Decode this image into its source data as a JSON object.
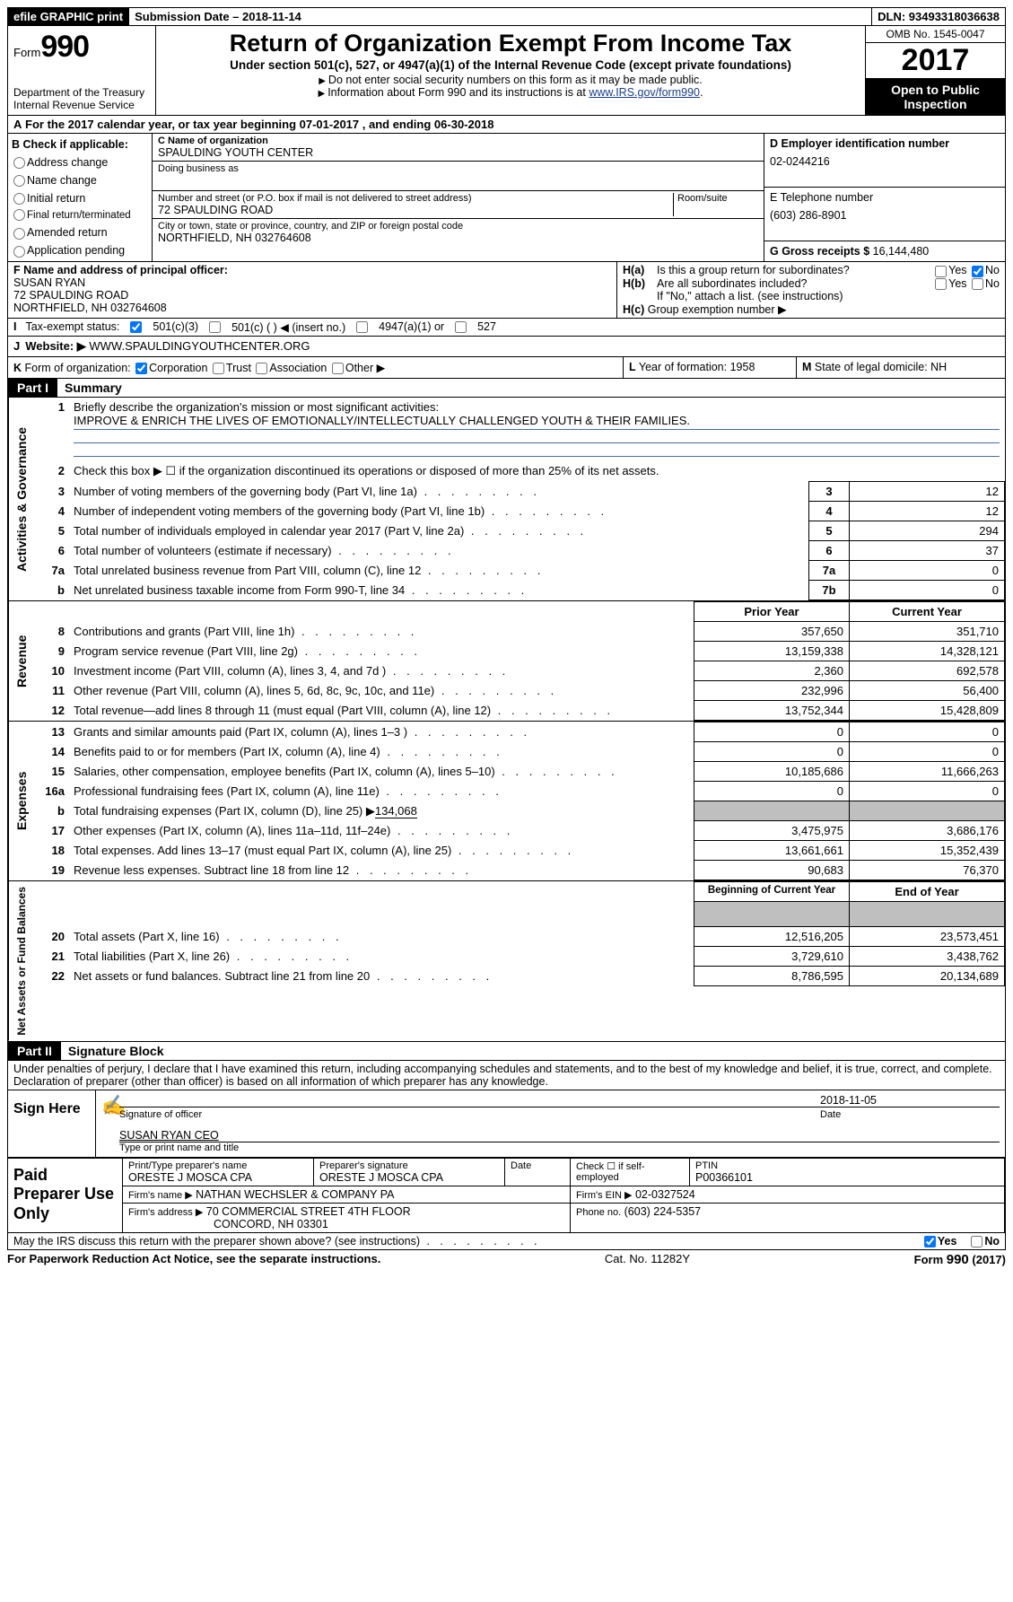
{
  "topbar": {
    "efile": "efile GRAPHIC print",
    "submission": "Submission Date – 2018-11-14",
    "dln": "DLN: 93493318036638"
  },
  "header": {
    "form_label": "Form",
    "form_num": "990",
    "dept1": "Department of the Treasury",
    "dept2": "Internal Revenue Service",
    "title": "Return of Organization Exempt From Income Tax",
    "subtitle": "Under section 501(c), 527, or 4947(a)(1) of the Internal Revenue Code (except private foundations)",
    "note1": "Do not enter social security numbers on this form as it may be made public.",
    "note2_pre": "Information about Form 990 and its instructions is at ",
    "note2_link": "www.IRS.gov/form990",
    "omb": "OMB No. 1545-0047",
    "year": "2017",
    "open": "Open to Public Inspection"
  },
  "row_a": {
    "label": "A",
    "text_pre": "For the 2017 calendar year, or tax year beginning ",
    "begin": "07-01-2017",
    "text_mid": " , and ending ",
    "end": "06-30-2018"
  },
  "col_b": {
    "title": "B Check if applicable:",
    "items": [
      "Address change",
      "Name change",
      "Initial return",
      "Final return/terminated",
      "Amended return",
      "Application pending"
    ]
  },
  "col_c": {
    "name_label": "C Name of organization",
    "name": "SPAULDING YOUTH CENTER",
    "dba_label": "Doing business as",
    "dba": "",
    "street_label": "Number and street (or P.O. box if mail is not delivered to street address)",
    "room_label": "Room/suite",
    "street": "72 SPAULDING ROAD",
    "city_label": "City or town, state or province, country, and ZIP or foreign postal code",
    "city": "NORTHFIELD, NH  032764608"
  },
  "col_d": {
    "ein_label": "D Employer identification number",
    "ein": "02-0244216",
    "phone_label": "E Telephone number",
    "phone": "(603) 286-8901",
    "gross_label": "G Gross receipts $",
    "gross": "16,144,480"
  },
  "f": {
    "label": "F  Name and address of principal officer:",
    "name": "SUSAN RYAN",
    "addr1": "72 SPAULDING ROAD",
    "addr2": "NORTHFIELD, NH  032764608"
  },
  "h": {
    "ha_label": "H(a)",
    "ha_text": "Is this a group return for subordinates?",
    "hb_label": "H(b)",
    "hb_text": "Are all subordinates included?",
    "hb_note": "If \"No,\" attach a list. (see instructions)",
    "hc_label": "H(c)",
    "hc_text": "Group exemption number ▶",
    "yes": "Yes",
    "no": "No"
  },
  "i": {
    "label": "I",
    "text": "Tax-exempt status:",
    "o1": "501(c)(3)",
    "o2": "501(c) (   ) ◀ (insert no.)",
    "o3": "4947(a)(1) or",
    "o4": "527"
  },
  "j": {
    "label": "J",
    "text": "Website: ▶",
    "value": "WWW.SPAULDINGYOUTHCENTER.ORG"
  },
  "k": {
    "label": "K",
    "text": "Form of organization:",
    "o1": "Corporation",
    "o2": "Trust",
    "o3": "Association",
    "o4": "Other ▶"
  },
  "l": {
    "label": "L",
    "text": "Year of formation:",
    "value": "1958"
  },
  "m": {
    "label": "M",
    "text": "State of legal domicile:",
    "value": "NH"
  },
  "part1": {
    "header": "Part I",
    "title": "Summary",
    "sidebar_gov": "Activities & Governance",
    "sidebar_rev": "Revenue",
    "sidebar_exp": "Expenses",
    "sidebar_net": "Net Assets or Fund Balances",
    "line1_label": "1",
    "line1_text": "Briefly describe the organization's mission or most significant activities:",
    "line1_value": "IMPROVE & ENRICH THE LIVES OF EMOTIONALLY/INTELLECTUALLY CHALLENGED YOUTH & THEIR FAMILIES.",
    "line2_label": "2",
    "line2_text": "Check this box ▶ ☐  if the organization discontinued its operations or disposed of more than 25% of its net assets.",
    "lines": [
      {
        "n": "3",
        "t": "Number of voting members of the governing body (Part VI, line 1a)",
        "box": "3",
        "v": "12"
      },
      {
        "n": "4",
        "t": "Number of independent voting members of the governing body (Part VI, line 1b)",
        "box": "4",
        "v": "12"
      },
      {
        "n": "5",
        "t": "Total number of individuals employed in calendar year 2017 (Part V, line 2a)",
        "box": "5",
        "v": "294"
      },
      {
        "n": "6",
        "t": "Total number of volunteers (estimate if necessary)",
        "box": "6",
        "v": "37"
      },
      {
        "n": "7a",
        "t": "Total unrelated business revenue from Part VIII, column (C), line 12",
        "box": "7a",
        "v": "0"
      },
      {
        "n": "b",
        "t": "Net unrelated business taxable income from Form 990-T, line 34",
        "box": "7b",
        "v": "0"
      }
    ],
    "col_prior": "Prior Year",
    "col_current": "Current Year",
    "revenue": [
      {
        "n": "8",
        "t": "Contributions and grants (Part VIII, line 1h)",
        "p": "357,650",
        "c": "351,710"
      },
      {
        "n": "9",
        "t": "Program service revenue (Part VIII, line 2g)",
        "p": "13,159,338",
        "c": "14,328,121"
      },
      {
        "n": "10",
        "t": "Investment income (Part VIII, column (A), lines 3, 4, and 7d )",
        "p": "2,360",
        "c": "692,578"
      },
      {
        "n": "11",
        "t": "Other revenue (Part VIII, column (A), lines 5, 6d, 8c, 9c, 10c, and 11e)",
        "p": "232,996",
        "c": "56,400"
      },
      {
        "n": "12",
        "t": "Total revenue—add lines 8 through 11 (must equal (Part VIII, column (A), line 12)",
        "p": "13,752,344",
        "c": "15,428,809"
      }
    ],
    "expenses": [
      {
        "n": "13",
        "t": "Grants and similar amounts paid (Part IX, column (A), lines 1–3 )",
        "p": "0",
        "c": "0"
      },
      {
        "n": "14",
        "t": "Benefits paid to or for members (Part IX, column (A), line 4)",
        "p": "0",
        "c": "0"
      },
      {
        "n": "15",
        "t": "Salaries, other compensation, employee benefits (Part IX, column (A), lines 5–10)",
        "p": "10,185,686",
        "c": "11,666,263"
      },
      {
        "n": "16a",
        "t": "Professional fundraising fees (Part IX, column (A), line 11e)",
        "p": "0",
        "c": "0"
      }
    ],
    "line16b_n": "b",
    "line16b_t": "Total fundraising expenses (Part IX, column (D), line 25) ▶",
    "line16b_v": "134,068",
    "expenses2": [
      {
        "n": "17",
        "t": "Other expenses (Part IX, column (A), lines 11a–11d, 11f–24e)",
        "p": "3,475,975",
        "c": "3,686,176"
      },
      {
        "n": "18",
        "t": "Total expenses. Add lines 13–17 (must equal Part IX, column (A), line 25)",
        "p": "13,661,661",
        "c": "15,352,439"
      },
      {
        "n": "19",
        "t": "Revenue less expenses. Subtract line 18 from line 12",
        "p": "90,683",
        "c": "76,370"
      }
    ],
    "col_begin": "Beginning of Current Year",
    "col_end": "End of Year",
    "net": [
      {
        "n": "20",
        "t": "Total assets (Part X, line 16)",
        "p": "12,516,205",
        "c": "23,573,451"
      },
      {
        "n": "21",
        "t": "Total liabilities (Part X, line 26)",
        "p": "3,729,610",
        "c": "3,438,762"
      },
      {
        "n": "22",
        "t": "Net assets or fund balances. Subtract line 21 from line 20",
        "p": "8,786,595",
        "c": "20,134,689"
      }
    ]
  },
  "part2": {
    "header": "Part II",
    "title": "Signature Block",
    "perjury": "Under penalties of perjury, I declare that I have examined this return, including accompanying schedules and statements, and to the best of my knowledge and belief, it is true, correct, and complete. Declaration of preparer (other than officer) is based on all information of which preparer has any knowledge.",
    "sign_here": "Sign Here",
    "sig_officer_label": "Signature of officer",
    "sig_date": "2018-11-05",
    "date_label": "Date",
    "officer_name": "SUSAN RYAN CEO",
    "name_label": "Type or print name and title",
    "paid_prep": "Paid Preparer Use Only",
    "prep_name_label": "Print/Type preparer's name",
    "prep_name": "ORESTE J MOSCA CPA",
    "prep_sig_label": "Preparer's signature",
    "prep_sig": "ORESTE J MOSCA CPA",
    "prep_date_label": "Date",
    "check_self": "Check ☐ if self-employed",
    "ptin_label": "PTIN",
    "ptin": "P00366101",
    "firm_name_label": "Firm's name    ▶",
    "firm_name": "NATHAN WECHSLER & COMPANY PA",
    "firm_ein_label": "Firm's EIN ▶",
    "firm_ein": "02-0327524",
    "firm_addr_label": "Firm's address ▶",
    "firm_addr1": "70 COMMERCIAL STREET 4TH FLOOR",
    "firm_addr2": "CONCORD, NH  03301",
    "phone_label": "Phone no.",
    "phone": "(603) 224-5357",
    "discuss": "May the IRS discuss this return with the preparer shown above? (see instructions)",
    "yes": "Yes",
    "no": "No"
  },
  "footer": {
    "paperwork": "For Paperwork Reduction Act Notice, see the separate instructions.",
    "cat": "Cat. No. 11282Y",
    "form": "Form 990 (2017)"
  }
}
